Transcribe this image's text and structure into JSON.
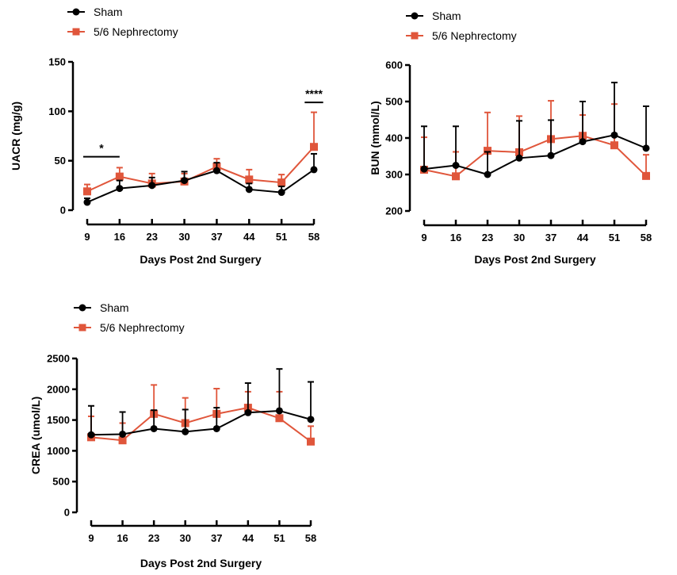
{
  "colors": {
    "sham": "#000000",
    "nephrectomy": "#e0563b"
  },
  "chart_data": [
    {
      "type": "line",
      "title": "",
      "xlabel": "Days Post 2nd Surgery",
      "ylabel": "UACR (mg/g)",
      "x": [
        9,
        16,
        23,
        30,
        37,
        44,
        51,
        58
      ],
      "ylim": [
        0,
        150
      ],
      "yticks": [
        0,
        50,
        100,
        150
      ],
      "grid": false,
      "legend": "top-left",
      "series": [
        {
          "name": "Sham",
          "marker": "circle",
          "values": [
            8,
            22,
            25,
            30,
            40,
            21,
            18,
            41
          ],
          "upper_error": [
            12,
            30,
            33,
            39,
            48,
            27,
            24,
            57
          ]
        },
        {
          "name": "5/6 Nephrectomy",
          "marker": "square",
          "values": [
            19,
            34,
            27,
            29,
            44,
            31,
            28,
            64
          ],
          "upper_error": [
            26,
            43,
            37,
            37,
            52,
            41,
            36,
            99
          ]
        }
      ],
      "annotations": [
        {
          "text": "*",
          "x_from": 9,
          "x_to": 16,
          "y": 54
        },
        {
          "text": "****",
          "x_from": 56,
          "x_to": 60,
          "y": 109
        }
      ]
    },
    {
      "type": "line",
      "title": "",
      "xlabel": "Days Post 2nd Surgery",
      "ylabel": "BUN (mmol/L)",
      "x": [
        9,
        16,
        23,
        30,
        37,
        44,
        51,
        58
      ],
      "ylim": [
        200,
        600
      ],
      "yticks": [
        200,
        300,
        400,
        500,
        600
      ],
      "grid": false,
      "legend": "top-left",
      "series": [
        {
          "name": "Sham",
          "marker": "circle",
          "values": [
            315,
            325,
            300,
            345,
            352,
            390,
            408,
            372
          ],
          "upper_error": [
            432,
            432,
            362,
            447,
            449,
            500,
            552,
            487
          ]
        },
        {
          "name": "5/6 Nephrectomy",
          "marker": "square",
          "values": [
            313,
            295,
            365,
            361,
            397,
            406,
            380,
            296
          ],
          "upper_error": [
            402,
            362,
            470,
            460,
            502,
            463,
            493,
            354
          ]
        }
      ],
      "annotations": []
    },
    {
      "type": "line",
      "title": "",
      "xlabel": "Days Post 2nd Surgery",
      "ylabel": "CREA (umol/L)",
      "x": [
        9,
        16,
        23,
        30,
        37,
        44,
        51,
        58
      ],
      "ylim": [
        0,
        2500
      ],
      "yticks": [
        0,
        500,
        1000,
        1500,
        2000,
        2500
      ],
      "grid": false,
      "legend": "top-left",
      "series": [
        {
          "name": "Sham",
          "marker": "circle",
          "values": [
            1260,
            1270,
            1360,
            1310,
            1360,
            1620,
            1650,
            1510
          ],
          "upper_error": [
            1730,
            1630,
            1660,
            1670,
            1700,
            2100,
            2330,
            2120
          ]
        },
        {
          "name": "5/6 Nephrectomy",
          "marker": "square",
          "values": [
            1220,
            1170,
            1600,
            1450,
            1600,
            1700,
            1530,
            1150
          ],
          "upper_error": [
            1560,
            1450,
            2070,
            1860,
            2010,
            1960,
            1960,
            1400
          ]
        }
      ],
      "annotations": []
    }
  ]
}
